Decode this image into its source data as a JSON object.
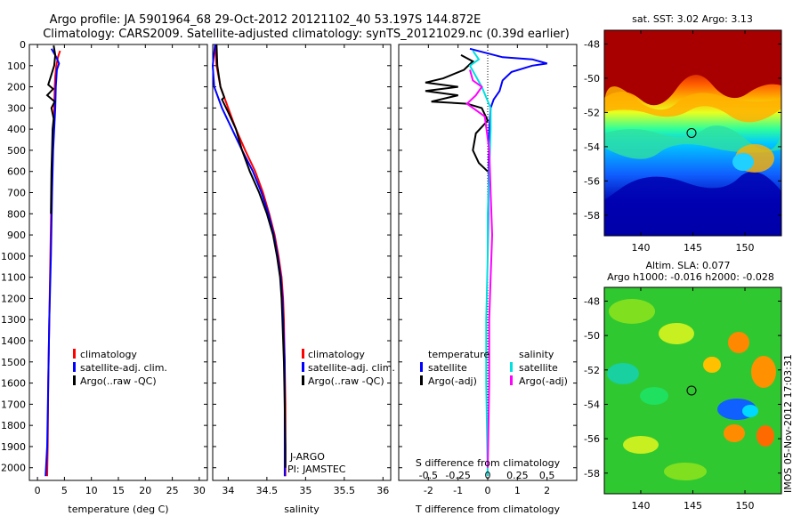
{
  "header": {
    "title1": "Argo profile: JA 5901964_68 29-Oct-2012 20121102_40 53.197S 144.872E",
    "title2": "Climatology: CARS2009. Satellite-adjusted climatology: synTS_20121029.nc (0.39d earlier)"
  },
  "side_label": "IMOS 05-Nov-2012 17:03:31",
  "colors": {
    "climatology": "#ff0000",
    "satellite": "#0000ff",
    "argo": "#000000",
    "sat_s": "#00e0e0",
    "argo_s": "#ff00ff"
  },
  "depth_ticks": [
    "0",
    "100",
    "200",
    "300",
    "400",
    "500",
    "600",
    "700",
    "800",
    "900",
    "1000",
    "1100",
    "1200",
    "1300",
    "1400",
    "1500",
    "1600",
    "1700",
    "1800",
    "1900",
    "2000"
  ],
  "chart_data": [
    {
      "type": "line",
      "id": "temperature",
      "xlabel": "temperature (deg C)",
      "xlim": [
        -1.5,
        31.5
      ],
      "ylim": [
        2060,
        0
      ],
      "xticks": [
        "0",
        "5",
        "10",
        "15",
        "20",
        "25",
        "30"
      ],
      "legend": [
        "climatology",
        "satellite-adj. clim.",
        "Argo(..raw -QC)"
      ],
      "series": [
        {
          "name": "climatology",
          "color": "#ff0000",
          "points": [
            [
              4.2,
              30
            ],
            [
              3.8,
              60
            ],
            [
              3.5,
              100
            ],
            [
              3.3,
              150
            ],
            [
              3.2,
              200
            ],
            [
              3.1,
              300
            ],
            [
              3.0,
              400
            ],
            [
              2.8,
              500
            ],
            [
              2.6,
              700
            ],
            [
              2.4,
              1000
            ],
            [
              2.2,
              1300
            ],
            [
              2.0,
              1600
            ],
            [
              1.9,
              1900
            ],
            [
              1.8,
              2040
            ]
          ]
        },
        {
          "name": "satellite-adj. clim.",
          "color": "#0000ff",
          "points": [
            [
              2.6,
              20
            ],
            [
              3.5,
              60
            ],
            [
              4.0,
              90
            ],
            [
              3.6,
              120
            ],
            [
              3.4,
              200
            ],
            [
              3.3,
              300
            ],
            [
              3.1,
              400
            ],
            [
              2.9,
              500
            ],
            [
              2.7,
              700
            ],
            [
              2.5,
              1000
            ],
            [
              2.2,
              1300
            ],
            [
              2.0,
              1600
            ],
            [
              1.8,
              1900
            ],
            [
              1.5,
              2040
            ]
          ]
        },
        {
          "name": "Argo(..raw -QC)",
          "color": "#000000",
          "points": [
            [
              3.0,
              5
            ],
            [
              3.3,
              50
            ],
            [
              3.1,
              100
            ],
            [
              2.5,
              150
            ],
            [
              2.0,
              190
            ],
            [
              2.9,
              210
            ],
            [
              1.8,
              240
            ],
            [
              3.2,
              270
            ],
            [
              2.6,
              300
            ],
            [
              3.0,
              350
            ],
            [
              2.8,
              400
            ],
            [
              2.7,
              500
            ],
            [
              2.6,
              600
            ],
            [
              2.5,
              800
            ]
          ]
        }
      ]
    },
    {
      "type": "line",
      "id": "salinity",
      "xlabel": "salinity",
      "xlim": [
        33.8,
        36.1
      ],
      "ylim": [
        2060,
        0
      ],
      "xticks": [
        "34",
        "34.5",
        "35",
        "35.5",
        "36"
      ],
      "legend": [
        "climatology",
        "satellite-adj. clim.",
        "Argo(..raw -QC)"
      ],
      "annotation": [
        "J-ARGO",
        "PI: JAMSTEC"
      ],
      "series": [
        {
          "name": "climatology",
          "color": "#ff0000",
          "points": [
            [
              33.83,
              0
            ],
            [
              33.85,
              100
            ],
            [
              33.9,
              200
            ],
            [
              34.0,
              300
            ],
            [
              34.1,
              400
            ],
            [
              34.22,
              500
            ],
            [
              34.35,
              600
            ],
            [
              34.45,
              700
            ],
            [
              34.53,
              800
            ],
            [
              34.6,
              900
            ],
            [
              34.65,
              1000
            ],
            [
              34.69,
              1100
            ],
            [
              34.71,
              1200
            ],
            [
              34.72,
              1300
            ],
            [
              34.73,
              1500
            ],
            [
              34.74,
              1700
            ],
            [
              34.74,
              1800
            ],
            [
              34.74,
              2040
            ]
          ]
        },
        {
          "name": "satellite-adj. clim.",
          "color": "#0000ff",
          "points": [
            [
              33.83,
              0
            ],
            [
              33.8,
              100
            ],
            [
              33.82,
              200
            ],
            [
              33.92,
              300
            ],
            [
              34.05,
              400
            ],
            [
              34.18,
              500
            ],
            [
              34.32,
              600
            ],
            [
              34.43,
              700
            ],
            [
              34.52,
              800
            ],
            [
              34.59,
              900
            ],
            [
              34.64,
              1000
            ],
            [
              34.68,
              1100
            ],
            [
              34.7,
              1200
            ],
            [
              34.71,
              1300
            ],
            [
              34.72,
              1400
            ],
            [
              34.73,
              1500
            ],
            [
              34.73,
              1700
            ],
            [
              34.73,
              2040
            ]
          ]
        },
        {
          "name": "Argo(..raw -QC)",
          "color": "#000000",
          "points": [
            [
              33.85,
              0
            ],
            [
              33.86,
              100
            ],
            [
              33.9,
              200
            ],
            [
              33.95,
              250
            ],
            [
              33.92,
              260
            ],
            [
              34.0,
              320
            ],
            [
              34.1,
              400
            ],
            [
              34.18,
              500
            ],
            [
              34.28,
              600
            ],
            [
              34.4,
              700
            ],
            [
              34.5,
              800
            ],
            [
              34.58,
              900
            ],
            [
              34.63,
              1000
            ],
            [
              34.67,
              1100
            ],
            [
              34.69,
              1200
            ],
            [
              34.7,
              1300
            ],
            [
              34.72,
              1500
            ],
            [
              34.73,
              1700
            ],
            [
              34.74,
              1900
            ],
            [
              34.74,
              2000
            ]
          ]
        }
      ]
    },
    {
      "type": "line",
      "id": "differences",
      "xlabel": "T difference from climatology",
      "xlabel_top": "S difference from climatology",
      "xlim": [
        -3.0,
        3.0
      ],
      "ylim": [
        2060,
        0
      ],
      "xticks": [
        "-2",
        "-1",
        "0",
        "1",
        "2"
      ],
      "xticks_s": [
        "-0.5",
        "-0.25",
        "0",
        "0.25",
        "0.5"
      ],
      "legend_t_title": "temperature",
      "legend_s_title": "salinity",
      "legend_t": [
        "satellite",
        "Argo(-adj)"
      ],
      "legend_s": [
        "satellite",
        "Argo(-adj)"
      ],
      "series": [
        {
          "name": "T satellite",
          "color": "#0000ff",
          "points": [
            [
              -0.6,
              20
            ],
            [
              0.5,
              60
            ],
            [
              1.5,
              70
            ],
            [
              2.0,
              90
            ],
            [
              1.5,
              100
            ],
            [
              0.8,
              130
            ],
            [
              0.5,
              170
            ],
            [
              0.4,
              220
            ],
            [
              0.2,
              260
            ],
            [
              0.1,
              300
            ],
            [
              0.05,
              400
            ],
            [
              0.0,
              1000
            ]
          ]
        },
        {
          "name": "T Argo(-adj)",
          "color": "#000000",
          "points": [
            [
              -0.9,
              50
            ],
            [
              -0.5,
              80
            ],
            [
              -0.8,
              120
            ],
            [
              -1.5,
              160
            ],
            [
              -2.1,
              180
            ],
            [
              -1.0,
              200
            ],
            [
              -2.1,
              220
            ],
            [
              -1.0,
              240
            ],
            [
              -1.9,
              270
            ],
            [
              -0.7,
              280
            ],
            [
              -0.2,
              300
            ],
            [
              0.0,
              360
            ],
            [
              -0.4,
              420
            ],
            [
              -0.5,
              500
            ],
            [
              -0.3,
              560
            ],
            [
              0.0,
              600
            ]
          ]
        },
        {
          "name": "S satellite",
          "color": "#00e0e0",
          "points": [
            [
              -0.5,
              30
            ],
            [
              -0.3,
              70
            ],
            [
              -0.6,
              100
            ],
            [
              -0.4,
              150
            ],
            [
              -0.2,
              200
            ],
            [
              0.1,
              300
            ],
            [
              0.1,
              400
            ],
            [
              0.05,
              600
            ],
            [
              0.0,
              800
            ],
            [
              0.0,
              1000
            ],
            [
              -0.05,
              1300
            ],
            [
              -0.05,
              1600
            ],
            [
              0.0,
              2040
            ]
          ]
        },
        {
          "name": "S Argo(-adj)",
          "color": "#ff00ff",
          "points": [
            [
              -0.6,
              120
            ],
            [
              -0.5,
              170
            ],
            [
              -0.2,
              200
            ],
            [
              -0.4,
              240
            ],
            [
              -0.7,
              280
            ],
            [
              -0.1,
              340
            ],
            [
              0.05,
              500
            ],
            [
              0.1,
              700
            ],
            [
              0.15,
              900
            ],
            [
              0.1,
              1100
            ],
            [
              0.05,
              1300
            ],
            [
              0.05,
              1600
            ],
            [
              0.0,
              2000
            ]
          ]
        }
      ]
    },
    {
      "type": "heatmap",
      "id": "sst",
      "title": "sat. SST: 3.02  Argo: 3.13",
      "xlim": [
        136.5,
        153.5
      ],
      "ylim": [
        -59.2,
        -47.2
      ],
      "xticks": [
        "140",
        "145",
        "150"
      ],
      "yticks": [
        "-48",
        "-50",
        "-52",
        "-54",
        "-56",
        "-58"
      ],
      "marker": {
        "lon": 144.872,
        "lat": -53.197
      }
    },
    {
      "type": "heatmap",
      "id": "sla",
      "title": "Altim. SLA: 0.077",
      "subtitle": "Argo h1000: -0.016  h2000: -0.028",
      "xlim": [
        136.5,
        153.5
      ],
      "ylim": [
        -59.2,
        -47.2
      ],
      "xticks": [
        "140",
        "145",
        "150"
      ],
      "yticks": [
        "-48",
        "-50",
        "-52",
        "-54",
        "-56",
        "-58"
      ],
      "marker": {
        "lon": 144.872,
        "lat": -53.197
      }
    }
  ]
}
